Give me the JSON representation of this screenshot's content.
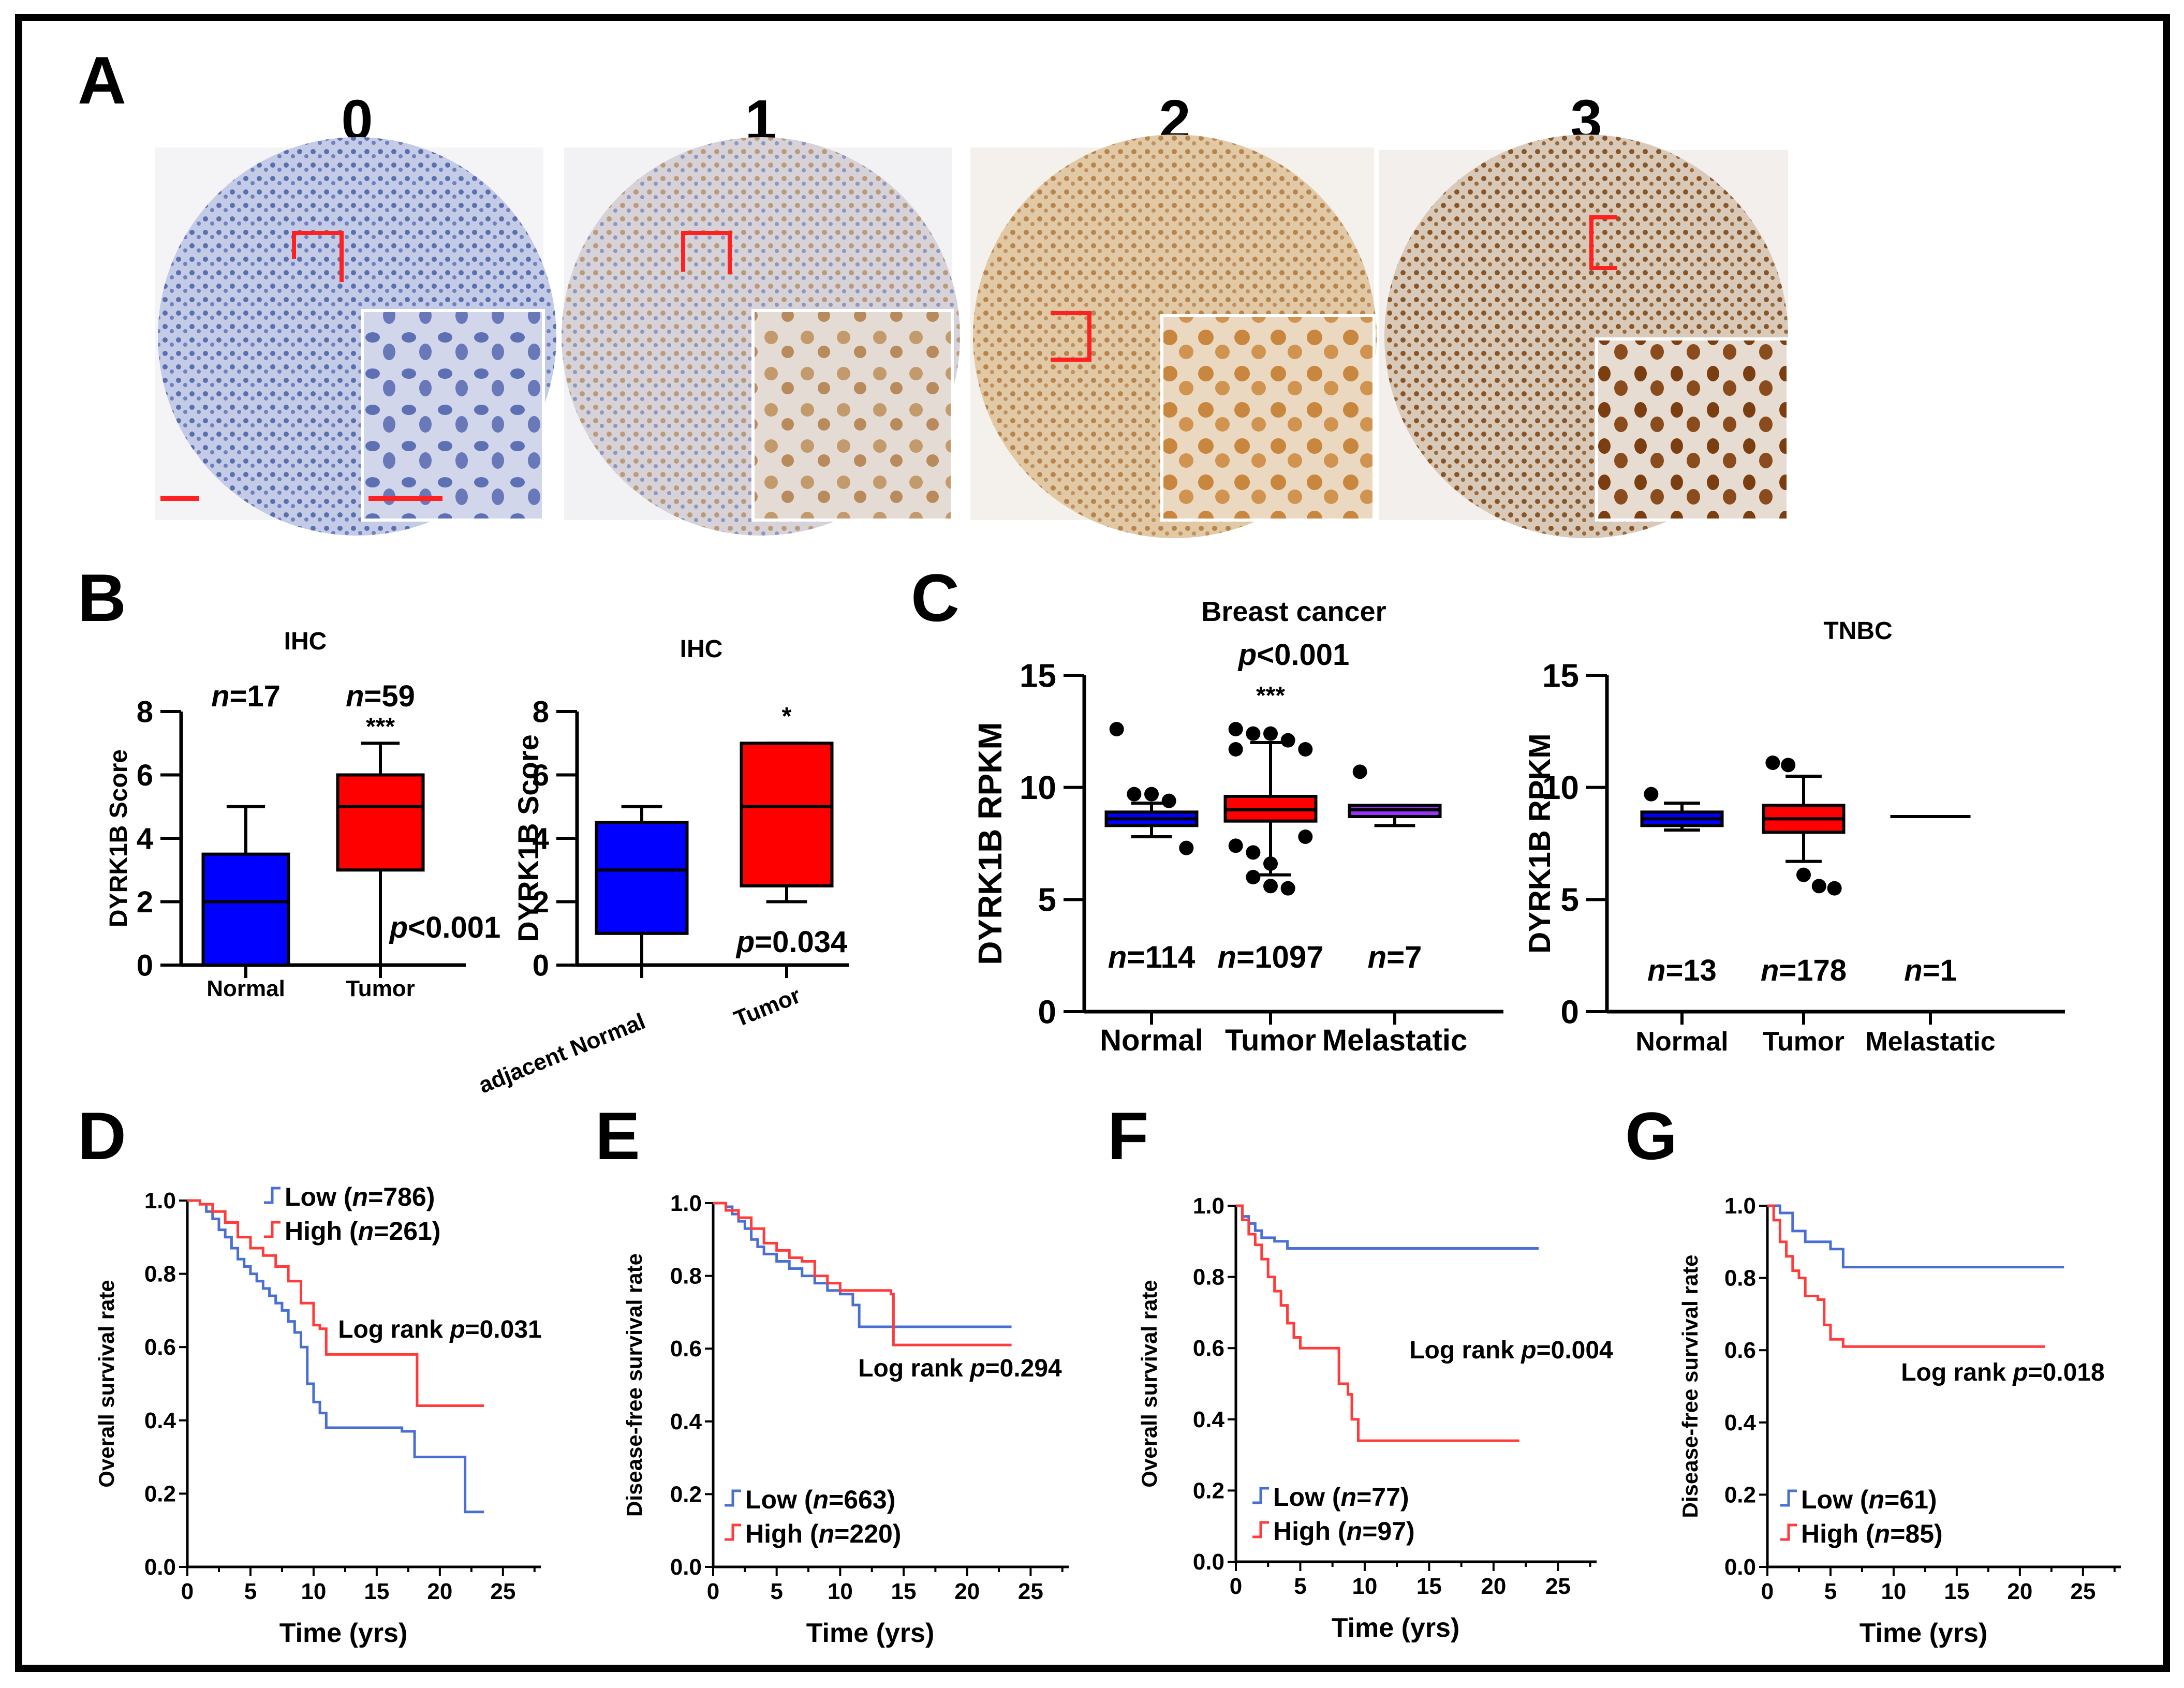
{
  "colors": {
    "blue": "#0000ff",
    "red": "#ff0000",
    "purple": "#9b30ff",
    "curve_blue": "#4a6fd4",
    "curve_red": "#ff3c3c",
    "ihc_blue": "#5a6fae",
    "ihc_brown": "#b8895a",
    "ihc_dark_brown": "#7a4a1e"
  },
  "panels": {
    "A": {
      "letter": "A",
      "scores": [
        "0",
        "1",
        "2",
        "3"
      ]
    },
    "B": {
      "letter": "B"
    },
    "C": {
      "letter": "C"
    },
    "D": {
      "letter": "D"
    },
    "E": {
      "letter": "E"
    },
    "F": {
      "letter": "F"
    },
    "G": {
      "letter": "G"
    }
  },
  "chart_data": [
    {
      "id": "B1",
      "type": "box",
      "title": "IHC",
      "ylabel": "DYRK1B Score",
      "ylim": [
        0,
        8
      ],
      "yticks": [
        "0",
        "2",
        "4",
        "6",
        "8"
      ],
      "categories": [
        "Normal",
        "Tumor"
      ],
      "n_labels": [
        [
          "n",
          "=17"
        ],
        [
          "n",
          "=59"
        ]
      ],
      "sig": "***",
      "pvalue": [
        "p",
        "<0.001"
      ],
      "boxes": [
        {
          "min": 0,
          "q1": 0,
          "median": 2,
          "q3": 3.5,
          "max": 5,
          "color": "#0000ff"
        },
        {
          "min": 0,
          "q1": 3,
          "median": 5,
          "q3": 6,
          "max": 7,
          "color": "#ff0000"
        }
      ]
    },
    {
      "id": "B2",
      "type": "box",
      "title": "IHC",
      "ylabel": "DYRK1B Score",
      "ylim": [
        0,
        8
      ],
      "yticks": [
        "0",
        "2",
        "4",
        "6",
        "8"
      ],
      "categories": [
        "adjacent Normal",
        "Tumor"
      ],
      "sig": "*",
      "pvalue": [
        "p",
        "=0.034"
      ],
      "boxes": [
        {
          "min": 0,
          "q1": 1,
          "median": 3,
          "q3": 4.5,
          "max": 5,
          "color": "#0000ff"
        },
        {
          "min": 2,
          "q1": 2.5,
          "median": 5,
          "q3": 7,
          "max": 7,
          "color": "#ff0000"
        }
      ]
    },
    {
      "id": "C1",
      "type": "box",
      "title": "Breast cancer",
      "subtitle": [
        "p",
        "<0.001"
      ],
      "ylabel": "DYRK1B RPKM",
      "ylim": [
        0,
        15
      ],
      "yticks": [
        "0",
        "5",
        "10",
        "15"
      ],
      "categories": [
        "Normal",
        "Tumor",
        "Melastatic"
      ],
      "n_labels": [
        [
          "n",
          "=114"
        ],
        [
          "n",
          "=1097"
        ],
        [
          "n",
          "=7"
        ]
      ],
      "sig": "***",
      "boxes": [
        {
          "min": 7.8,
          "q1": 8.3,
          "median": 8.6,
          "q3": 8.9,
          "max": 9.3,
          "color": "#0000ff",
          "outliers": [
            12.6,
            9.7,
            9.7,
            9.4,
            7.3
          ]
        },
        {
          "min": 6.1,
          "q1": 8.5,
          "median": 9.0,
          "q3": 9.6,
          "max": 12.0,
          "color": "#ff0000",
          "outliers": [
            12.6,
            12.4,
            12.4,
            12.1,
            11.7,
            11.7,
            6.0,
            5.6,
            5.5,
            7.8,
            7.4,
            7.1,
            6.6
          ]
        },
        {
          "min": 8.3,
          "q1": 8.7,
          "median": 9.0,
          "q3": 9.2,
          "max": 9.2,
          "color": "#9b30ff",
          "outliers": [
            10.7
          ]
        }
      ]
    },
    {
      "id": "C2",
      "type": "box",
      "title": "TNBC",
      "ylabel": "DYRK1B RPKM",
      "ylim": [
        0,
        15
      ],
      "yticks": [
        "0",
        "5",
        "10",
        "15"
      ],
      "categories": [
        "Normal",
        "Tumor",
        "Melastatic"
      ],
      "n_labels": [
        [
          "n",
          "=13"
        ],
        [
          "n",
          "=178"
        ],
        [
          "n",
          "=1"
        ]
      ],
      "boxes": [
        {
          "min": 8.1,
          "q1": 8.3,
          "median": 8.6,
          "q3": 8.9,
          "max": 9.3,
          "color": "#0000ff",
          "outliers": [
            9.7
          ]
        },
        {
          "min": 6.7,
          "q1": 8.0,
          "median": 8.6,
          "q3": 9.2,
          "max": 10.5,
          "color": "#ff0000",
          "outliers": [
            11.1,
            11.0,
            6.1,
            5.6,
            5.5
          ]
        },
        {
          "min": 8.7,
          "q1": 8.7,
          "median": 8.7,
          "q3": 8.7,
          "max": 8.7,
          "color": "#000000"
        }
      ]
    },
    {
      "id": "D",
      "type": "line",
      "ylabel": "Overall survival rate",
      "xlabel": "Time (yrs)",
      "xlim": [
        0,
        28
      ],
      "ylim": [
        0,
        1
      ],
      "xticks": [
        "0",
        "5",
        "10",
        "15",
        "20",
        "25"
      ],
      "yticks": [
        "0.0",
        "0.2",
        "0.4",
        "0.6",
        "0.8",
        "1.0"
      ],
      "annotation": [
        "Log rank ",
        "p",
        "=0.031"
      ],
      "series": [
        {
          "name": "Low",
          "n": "786",
          "color": "#4a6fd4",
          "points": [
            [
              0,
              1
            ],
            [
              1,
              0.99
            ],
            [
              1.5,
              0.97
            ],
            [
              2,
              0.95
            ],
            [
              2.5,
              0.92
            ],
            [
              3,
              0.9
            ],
            [
              3.5,
              0.87
            ],
            [
              4,
              0.84
            ],
            [
              4.5,
              0.82
            ],
            [
              5,
              0.8
            ],
            [
              5.5,
              0.78
            ],
            [
              6,
              0.76
            ],
            [
              6.5,
              0.74
            ],
            [
              7,
              0.72
            ],
            [
              7.5,
              0.7
            ],
            [
              8,
              0.67
            ],
            [
              8.5,
              0.64
            ],
            [
              9,
              0.6
            ],
            [
              9.5,
              0.5
            ],
            [
              10,
              0.45
            ],
            [
              10.5,
              0.42
            ],
            [
              11,
              0.38
            ],
            [
              15,
              0.38
            ],
            [
              17,
              0.37
            ],
            [
              18,
              0.3
            ],
            [
              22,
              0.15
            ],
            [
              23.5,
              0.15
            ]
          ]
        },
        {
          "name": "High",
          "n": "261",
          "color": "#ff3c3c",
          "points": [
            [
              0,
              1
            ],
            [
              1,
              0.99
            ],
            [
              2,
              0.97
            ],
            [
              3,
              0.94
            ],
            [
              4,
              0.9
            ],
            [
              5,
              0.87
            ],
            [
              6,
              0.85
            ],
            [
              7,
              0.82
            ],
            [
              8,
              0.78
            ],
            [
              9,
              0.72
            ],
            [
              10,
              0.66
            ],
            [
              10.5,
              0.65
            ],
            [
              11,
              0.58
            ],
            [
              18,
              0.58
            ],
            [
              18.2,
              0.44
            ],
            [
              23.5,
              0.44
            ]
          ]
        }
      ]
    },
    {
      "id": "E",
      "type": "line",
      "ylabel": "Disease-free survival rate",
      "xlabel": "Time (yrs)",
      "xlim": [
        0,
        28
      ],
      "ylim": [
        0,
        1
      ],
      "xticks": [
        "0",
        "5",
        "10",
        "15",
        "20",
        "25"
      ],
      "yticks": [
        "0.0",
        "0.2",
        "0.4",
        "0.6",
        "0.8",
        "1.0"
      ],
      "annotation": [
        "Log rank ",
        "p",
        "=0.294"
      ],
      "series": [
        {
          "name": "Low",
          "n": "663",
          "color": "#4a6fd4",
          "points": [
            [
              0,
              1
            ],
            [
              1,
              0.99
            ],
            [
              1.5,
              0.97
            ],
            [
              2,
              0.95
            ],
            [
              2.5,
              0.93
            ],
            [
              3,
              0.9
            ],
            [
              3.5,
              0.88
            ],
            [
              4,
              0.86
            ],
            [
              5,
              0.84
            ],
            [
              6,
              0.82
            ],
            [
              7,
              0.8
            ],
            [
              8,
              0.78
            ],
            [
              9,
              0.76
            ],
            [
              10,
              0.75
            ],
            [
              11,
              0.72
            ],
            [
              11.5,
              0.66
            ],
            [
              23.5,
              0.66
            ]
          ]
        },
        {
          "name": "High",
          "n": "220",
          "color": "#ff3c3c",
          "points": [
            [
              0,
              1
            ],
            [
              1,
              0.98
            ],
            [
              2,
              0.96
            ],
            [
              3,
              0.93
            ],
            [
              4,
              0.89
            ],
            [
              5,
              0.87
            ],
            [
              6,
              0.85
            ],
            [
              7,
              0.84
            ],
            [
              8,
              0.8
            ],
            [
              9,
              0.78
            ],
            [
              10,
              0.76
            ],
            [
              14,
              0.75
            ],
            [
              14.2,
              0.61
            ],
            [
              23.5,
              0.61
            ]
          ]
        }
      ]
    },
    {
      "id": "F",
      "type": "line",
      "ylabel": "Overall survival rate",
      "xlabel": "Time (yrs)",
      "xlim": [
        0,
        28
      ],
      "ylim": [
        0,
        1
      ],
      "xticks": [
        "0",
        "5",
        "10",
        "15",
        "20",
        "25"
      ],
      "yticks": [
        "0.0",
        "0.2",
        "0.4",
        "0.6",
        "0.8",
        "1.0"
      ],
      "annotation": [
        "Log rank ",
        "p",
        "=0.004"
      ],
      "series": [
        {
          "name": "Low",
          "n": "77",
          "color": "#4a6fd4",
          "points": [
            [
              0,
              1
            ],
            [
              0.5,
              0.97
            ],
            [
              1,
              0.95
            ],
            [
              1.5,
              0.93
            ],
            [
              2,
              0.91
            ],
            [
              3,
              0.9
            ],
            [
              4,
              0.88
            ],
            [
              23.5,
              0.88
            ]
          ]
        },
        {
          "name": "High",
          "n": "97",
          "color": "#ff3c3c",
          "points": [
            [
              0,
              1
            ],
            [
              0.5,
              0.96
            ],
            [
              1,
              0.92
            ],
            [
              1.5,
              0.89
            ],
            [
              2,
              0.85
            ],
            [
              2.5,
              0.8
            ],
            [
              3,
              0.76
            ],
            [
              3.5,
              0.72
            ],
            [
              4,
              0.67
            ],
            [
              4.5,
              0.63
            ],
            [
              5,
              0.6
            ],
            [
              7.5,
              0.6
            ],
            [
              8,
              0.5
            ],
            [
              8.7,
              0.47
            ],
            [
              9,
              0.4
            ],
            [
              9.5,
              0.34
            ],
            [
              22,
              0.34
            ]
          ]
        }
      ]
    },
    {
      "id": "G",
      "type": "line",
      "ylabel": "Disease-free survival rate",
      "xlabel": "Time (yrs)",
      "xlim": [
        0,
        28
      ],
      "ylim": [
        0,
        1
      ],
      "xticks": [
        "0",
        "5",
        "10",
        "15",
        "20",
        "25"
      ],
      "yticks": [
        "0.0",
        "0.2",
        "0.4",
        "0.6",
        "0.8",
        "1.0"
      ],
      "annotation": [
        "Log rank ",
        "p",
        "=0.018"
      ],
      "series": [
        {
          "name": "Low",
          "n": "61",
          "color": "#4a6fd4",
          "points": [
            [
              0,
              1
            ],
            [
              1,
              0.98
            ],
            [
              2,
              0.93
            ],
            [
              3,
              0.9
            ],
            [
              5,
              0.88
            ],
            [
              6,
              0.83
            ],
            [
              23.5,
              0.83
            ]
          ]
        },
        {
          "name": "High",
          "n": "85",
          "color": "#ff3c3c",
          "points": [
            [
              0,
              1
            ],
            [
              0.5,
              0.96
            ],
            [
              1,
              0.9
            ],
            [
              1.5,
              0.86
            ],
            [
              2,
              0.82
            ],
            [
              2.5,
              0.8
            ],
            [
              3,
              0.75
            ],
            [
              4,
              0.74
            ],
            [
              4.5,
              0.67
            ],
            [
              5,
              0.63
            ],
            [
              6,
              0.61
            ],
            [
              22,
              0.61
            ]
          ]
        }
      ]
    }
  ]
}
